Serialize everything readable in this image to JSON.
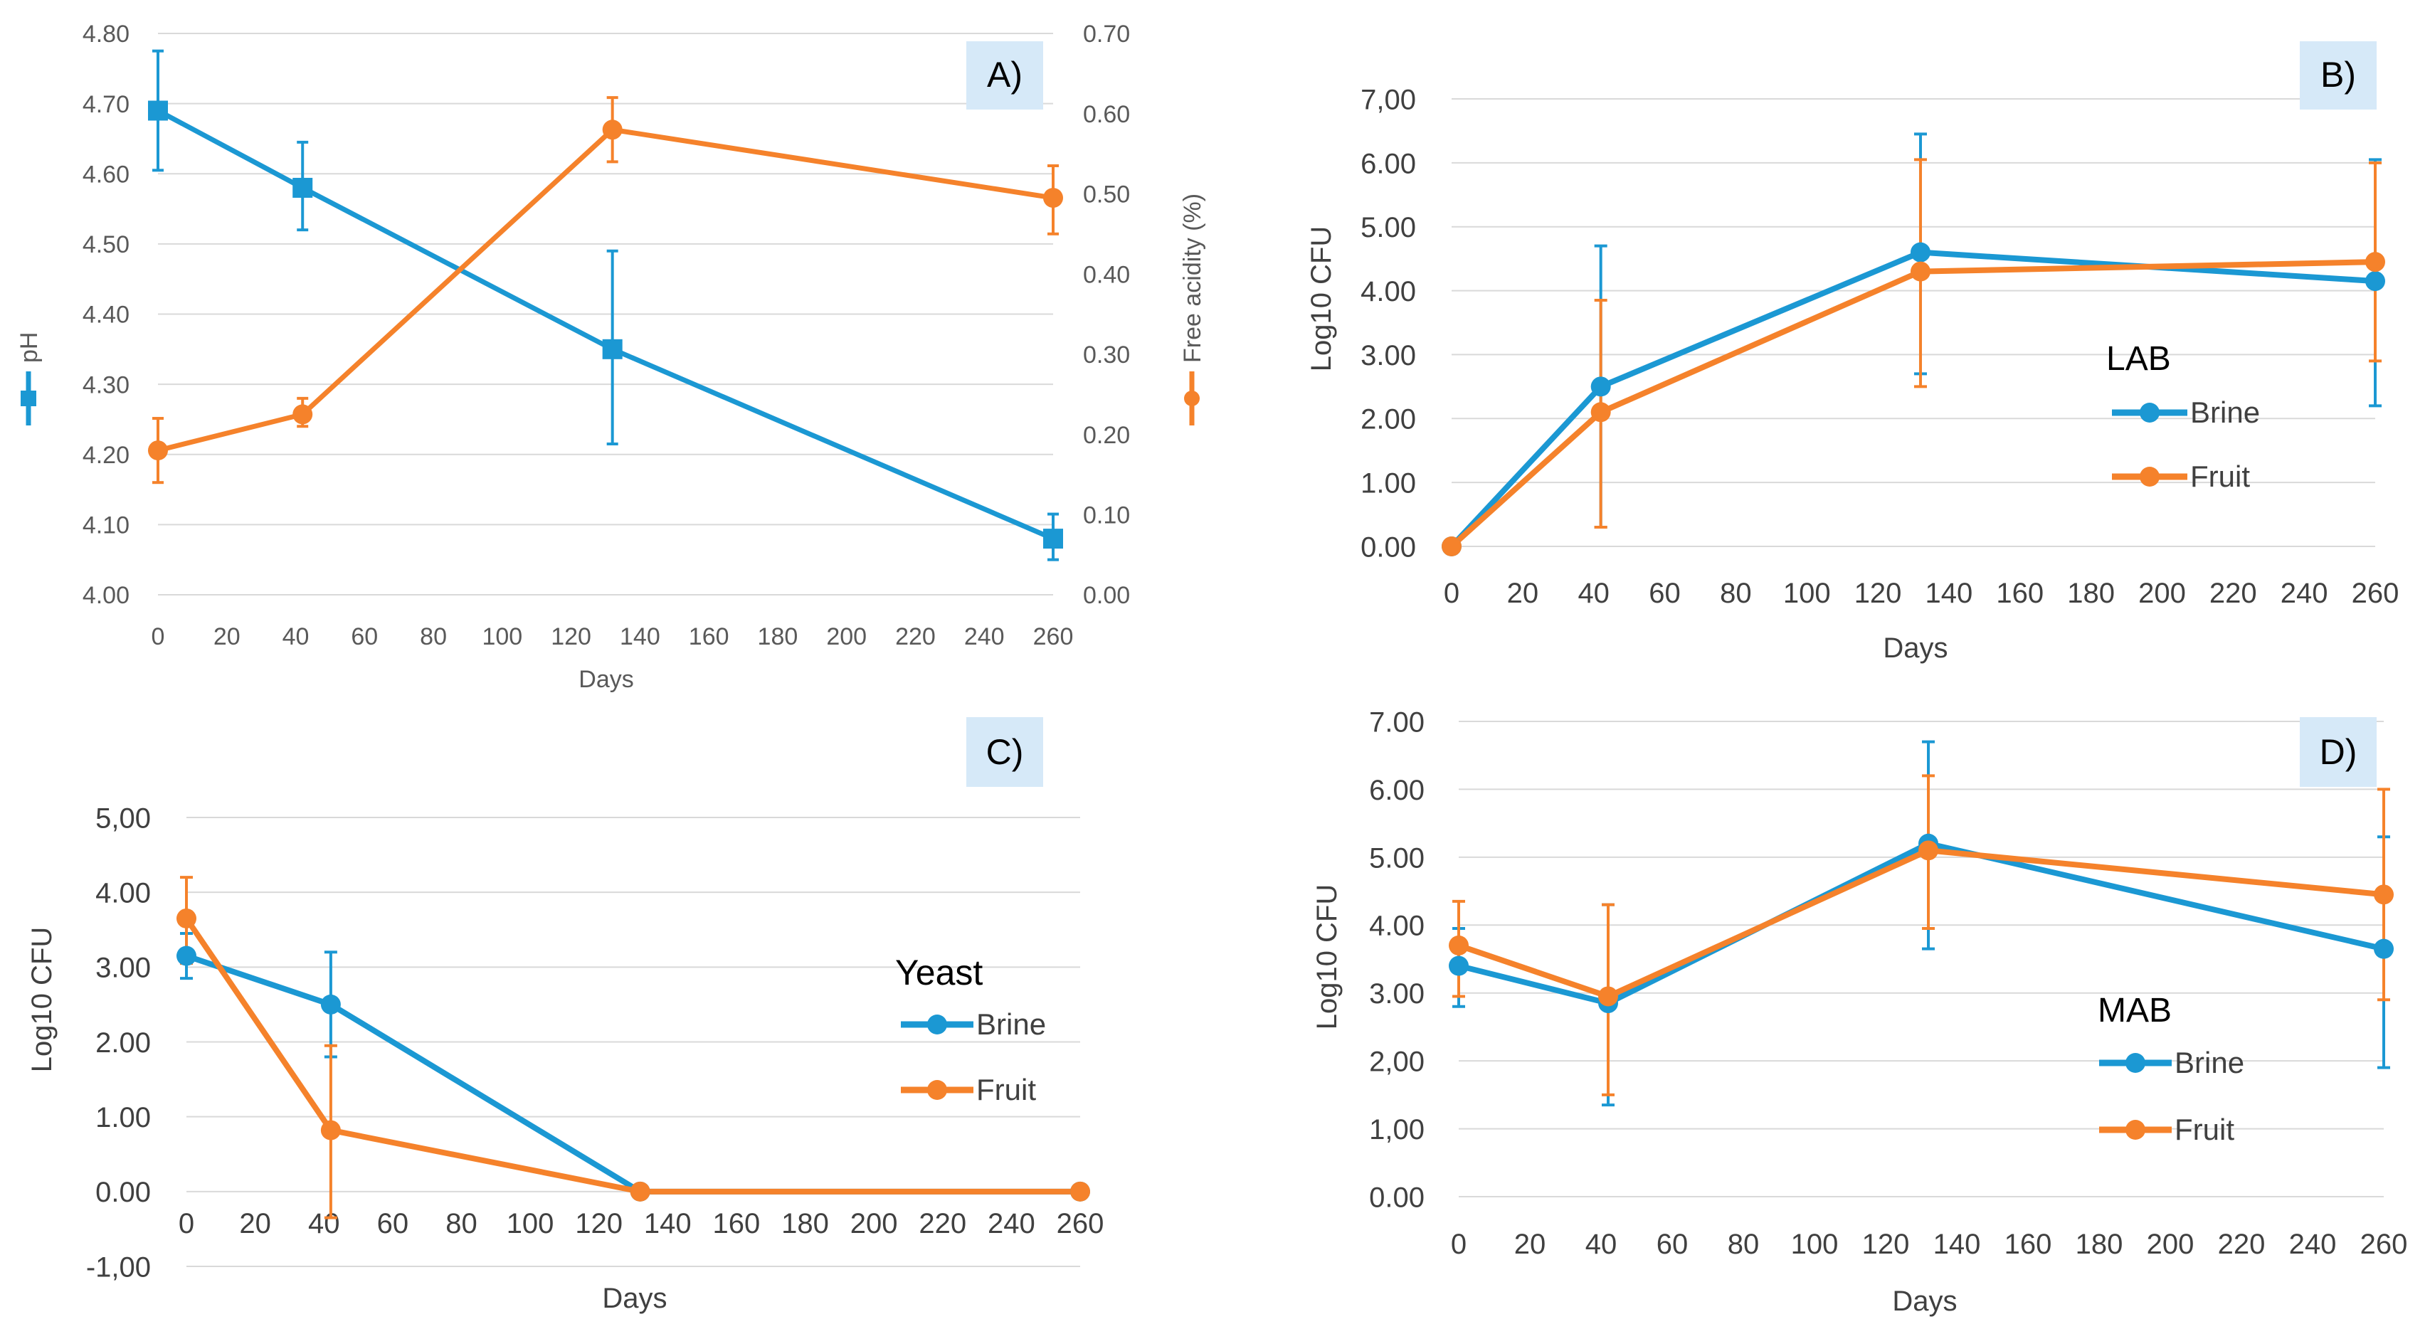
{
  "colors": {
    "brine": "#1b98d3",
    "fruit": "#f5822b",
    "badge": "#d6e9f8",
    "grid": "#d9d9d9",
    "axis_text": "#595959"
  },
  "chart_data": [
    {
      "id": "A",
      "type": "line",
      "badge": "A)",
      "xlabel": "Days",
      "ylabel": "pH",
      "y2label": "Free acidity (%)",
      "x_ticks": [
        "0",
        "20",
        "40",
        "60",
        "80",
        "100",
        "120",
        "140",
        "160",
        "180",
        "200",
        "220",
        "240",
        "260"
      ],
      "xlim": [
        0,
        260
      ],
      "y_ticks": [
        "4.00",
        "4.10",
        "4.20",
        "4.30",
        "4.40",
        "4.50",
        "4.60",
        "4.70",
        "4.80"
      ],
      "ylim": [
        4.0,
        4.8
      ],
      "y2_ticks": [
        "0.00",
        "0.10",
        "0.20",
        "0.30",
        "0.40",
        "0.50",
        "0.60",
        "0.70"
      ],
      "y2lim": [
        0.0,
        0.7
      ],
      "series": [
        {
          "name": "pH",
          "color_key": "brine",
          "marker": "square",
          "axis": "left",
          "x": [
            0,
            42,
            132,
            260
          ],
          "y": [
            4.69,
            4.58,
            4.35,
            4.08
          ],
          "err_lo": [
            4.605,
            4.52,
            4.215,
            4.05
          ],
          "err_hi": [
            4.775,
            4.645,
            4.49,
            4.115
          ]
        },
        {
          "name": "Free acidity",
          "color_key": "fruit",
          "marker": "circle",
          "axis": "right",
          "x": [
            0,
            42,
            132,
            260
          ],
          "y": [
            0.18,
            0.225,
            0.58,
            0.495
          ],
          "err_lo": [
            0.14,
            0.21,
            0.54,
            0.45
          ],
          "err_hi": [
            0.22,
            0.245,
            0.62,
            0.535
          ]
        }
      ]
    },
    {
      "id": "B",
      "type": "line",
      "badge": "B)",
      "xlabel": "Days",
      "ylabel": "Log10 CFU",
      "legend_title": "LAB",
      "x_ticks": [
        "0",
        "20",
        "40",
        "60",
        "80",
        "100",
        "120",
        "140",
        "160",
        "180",
        "200",
        "220",
        "240",
        "260"
      ],
      "xlim": [
        0,
        260
      ],
      "y_ticks": [
        "0.00",
        "1.00",
        "2.00",
        "3.00",
        "4.00",
        "5.00",
        "6.00",
        "7,00"
      ],
      "ylim": [
        0,
        7
      ],
      "series": [
        {
          "name": "Brine",
          "color_key": "brine",
          "marker": "circle",
          "x": [
            0,
            42,
            132,
            260
          ],
          "y": [
            0,
            2.5,
            4.6,
            4.15
          ],
          "err_lo": [
            0,
            0.3,
            2.7,
            2.2
          ],
          "err_hi": [
            0,
            4.7,
            6.45,
            6.05
          ]
        },
        {
          "name": "Fruit",
          "color_key": "fruit",
          "marker": "circle",
          "x": [
            0,
            42,
            132,
            260
          ],
          "y": [
            0,
            2.1,
            4.3,
            4.45
          ],
          "err_lo": [
            0,
            0.3,
            2.5,
            2.9
          ],
          "err_hi": [
            0,
            3.85,
            6.05,
            6.0
          ]
        }
      ]
    },
    {
      "id": "C",
      "type": "line",
      "badge": "C)",
      "xlabel": "Days",
      "ylabel": "Log10 CFU",
      "legend_title": "Yeast",
      "x_ticks": [
        "0",
        "20",
        "40",
        "60",
        "80",
        "100",
        "120",
        "140",
        "160",
        "180",
        "200",
        "220",
        "240",
        "260"
      ],
      "xlim": [
        0,
        260
      ],
      "y_ticks": [
        "-1,00",
        "0.00",
        "1.00",
        "2.00",
        "3.00",
        "4.00",
        "5,00"
      ],
      "ylim": [
        -1,
        5
      ],
      "series": [
        {
          "name": "Brine",
          "color_key": "brine",
          "marker": "circle",
          "x": [
            0,
            42,
            132,
            260
          ],
          "y": [
            3.15,
            2.5,
            0,
            0
          ],
          "err_lo": [
            2.85,
            1.8,
            0,
            0
          ],
          "err_hi": [
            3.45,
            3.2,
            0,
            0
          ]
        },
        {
          "name": "Fruit",
          "color_key": "fruit",
          "marker": "circle",
          "x": [
            0,
            42,
            132,
            260
          ],
          "y": [
            3.65,
            0.82,
            0,
            0
          ],
          "err_lo": [
            3.05,
            -0.35,
            0,
            0
          ],
          "err_hi": [
            4.2,
            1.95,
            0,
            0
          ]
        }
      ]
    },
    {
      "id": "D",
      "type": "line",
      "badge": "D)",
      "xlabel": "Days",
      "ylabel": "Log10 CFU",
      "legend_title": "MAB",
      "x_ticks": [
        "0",
        "20",
        "40",
        "60",
        "80",
        "100",
        "120",
        "140",
        "160",
        "180",
        "200",
        "220",
        "240",
        "260"
      ],
      "xlim": [
        0,
        260
      ],
      "y_ticks": [
        "0.00",
        "1,00",
        "2,00",
        "3.00",
        "4.00",
        "5.00",
        "6.00",
        "7.00"
      ],
      "ylim": [
        0,
        7
      ],
      "series": [
        {
          "name": "Brine",
          "color_key": "brine",
          "marker": "circle",
          "x": [
            0,
            42,
            132,
            260
          ],
          "y": [
            3.4,
            2.85,
            5.2,
            3.65
          ],
          "err_lo": [
            2.8,
            1.35,
            3.65,
            1.9
          ],
          "err_hi": [
            3.95,
            4.3,
            6.7,
            5.3
          ]
        },
        {
          "name": "Fruit",
          "color_key": "fruit",
          "marker": "circle",
          "x": [
            0,
            42,
            132,
            260
          ],
          "y": [
            3.7,
            2.95,
            5.1,
            4.45
          ],
          "err_lo": [
            2.95,
            1.5,
            3.95,
            2.9
          ],
          "err_hi": [
            4.35,
            4.3,
            6.2,
            6.0
          ]
        }
      ]
    }
  ]
}
